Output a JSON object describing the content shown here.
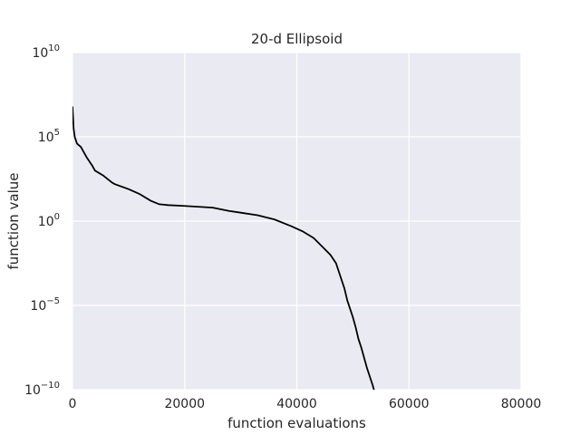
{
  "chart_data": {
    "type": "line",
    "title": "20-d Ellipsoid",
    "xlabel": "function evaluations",
    "ylabel": "function value",
    "xlim": [
      0,
      80000
    ],
    "ylim_exponents": [
      -10,
      10
    ],
    "yscale": "log",
    "grid": true,
    "x_ticks": [
      0,
      20000,
      40000,
      60000,
      80000
    ],
    "x_tick_labels": [
      "0",
      "20000",
      "40000",
      "60000",
      "80000"
    ],
    "y_tick_exponents": [
      -10,
      -5,
      0,
      5,
      10
    ],
    "y_tick_base": "10",
    "y_tick_exps_text": [
      "−10",
      "−5",
      "0",
      "5",
      "10"
    ],
    "colors": {
      "background": "#eaeaf2",
      "grid": "#ffffff",
      "line": "#000000"
    },
    "series": [
      {
        "x": [
          0,
          200,
          400,
          800,
          1500,
          2500,
          3500,
          4000,
          5500,
          7000,
          7500,
          10000,
          12000,
          14000,
          15500,
          17000,
          20000,
          25000,
          28000,
          30000,
          33000,
          36000,
          39000,
          41000,
          43000,
          44500,
          46000,
          47000,
          48000,
          48500,
          49000,
          49500,
          50000,
          50500,
          51000,
          51500,
          52000,
          52500,
          53000,
          53500,
          54000,
          54500
        ],
        "y_log10": [
          6.8,
          5.5,
          5.0,
          4.6,
          4.4,
          3.8,
          3.3,
          3.0,
          2.7,
          2.3,
          2.2,
          1.9,
          1.6,
          1.2,
          1.0,
          0.95,
          0.9,
          0.8,
          0.6,
          0.5,
          0.35,
          0.1,
          -0.3,
          -0.6,
          -1.0,
          -1.5,
          -2.0,
          -2.5,
          -3.5,
          -4.0,
          -4.7,
          -5.2,
          -5.7,
          -6.3,
          -7.0,
          -7.5,
          -8.1,
          -8.7,
          -9.2,
          -9.7,
          -10.3,
          -10.5
        ]
      }
    ]
  }
}
